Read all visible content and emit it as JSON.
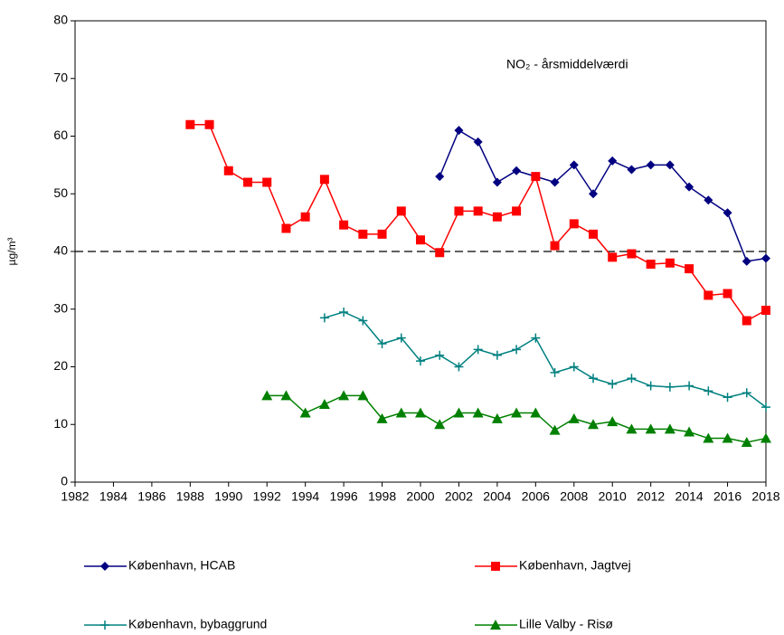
{
  "chart_data": {
    "type": "line",
    "annotation": "NO₂ - årsmiddelværdi",
    "y_label": "µg/m³",
    "xlim": [
      1982,
      2018
    ],
    "xticks": [
      1982,
      1984,
      1986,
      1988,
      1990,
      1992,
      1994,
      1996,
      1998,
      2000,
      2002,
      2004,
      2006,
      2008,
      2010,
      2012,
      2014,
      2016,
      2018
    ],
    "ylim": [
      0,
      80
    ],
    "yticks": [
      0,
      10,
      20,
      30,
      40,
      50,
      60,
      70,
      80
    ],
    "grid": false,
    "reference_line": 40,
    "legend": "bottom",
    "series": [
      {
        "name": "København, HCAB",
        "color": "#000080",
        "marker": "diamond",
        "x": [
          2001,
          2002,
          2003,
          2004,
          2005,
          2006,
          2007,
          2008,
          2009,
          2010,
          2011,
          2012,
          2013,
          2014,
          2015,
          2016,
          2017,
          2018
        ],
        "values": [
          53,
          61,
          59,
          52,
          54,
          53,
          52,
          55,
          50,
          55.7,
          54.2,
          55,
          55,
          51.2,
          48.9,
          46.7,
          38.3,
          38.8
        ]
      },
      {
        "name": "København, Jagtvej",
        "color": "#ff0000",
        "marker": "square",
        "x": [
          1988,
          1989,
          1990,
          1991,
          1992,
          1993,
          1994,
          1995,
          1996,
          1997,
          1998,
          1999,
          2000,
          2001,
          2002,
          2003,
          2004,
          2005,
          2006,
          2007,
          2008,
          2009,
          2010,
          2011,
          2012,
          2013,
          2014,
          2015,
          2016,
          2017,
          2018
        ],
        "values": [
          62,
          62,
          54,
          52,
          52,
          44,
          46,
          52.5,
          44.6,
          43,
          43,
          47,
          42,
          39.8,
          47,
          47,
          46,
          47,
          53,
          41,
          44.8,
          43,
          39,
          39.6,
          37.8,
          38,
          37,
          32.4,
          32.7,
          28,
          29.8
        ]
      },
      {
        "name": "København, bybaggrund",
        "color": "#008080",
        "marker": "plus",
        "x": [
          1995,
          1996,
          1997,
          1998,
          1999,
          2000,
          2001,
          2002,
          2003,
          2004,
          2005,
          2006,
          2007,
          2008,
          2009,
          2010,
          2011,
          2012,
          2013,
          2014,
          2015,
          2016,
          2017,
          2018
        ],
        "values": [
          28.5,
          29.5,
          28,
          24,
          25,
          21,
          22,
          20,
          23,
          22,
          23,
          25,
          19,
          20,
          18,
          17,
          18,
          16.7,
          16.5,
          16.7,
          15.8,
          14.7,
          15.5,
          13
        ]
      },
      {
        "name": "Lille Valby - Risø",
        "color": "#008000",
        "marker": "triangle",
        "x": [
          1992,
          1993,
          1994,
          1995,
          1996,
          1997,
          1998,
          1999,
          2000,
          2001,
          2002,
          2003,
          2004,
          2005,
          2006,
          2007,
          2008,
          2009,
          2010,
          2011,
          2012,
          2013,
          2014,
          2015,
          2016,
          2017,
          2018
        ],
        "values": [
          15,
          15,
          12,
          13.5,
          15,
          15,
          11,
          12,
          12,
          10,
          12,
          12,
          11,
          12,
          12,
          9,
          11,
          10,
          10.5,
          9.2,
          9.2,
          9.2,
          8.7,
          7.6,
          7.6,
          6.9,
          7.6
        ]
      }
    ]
  }
}
